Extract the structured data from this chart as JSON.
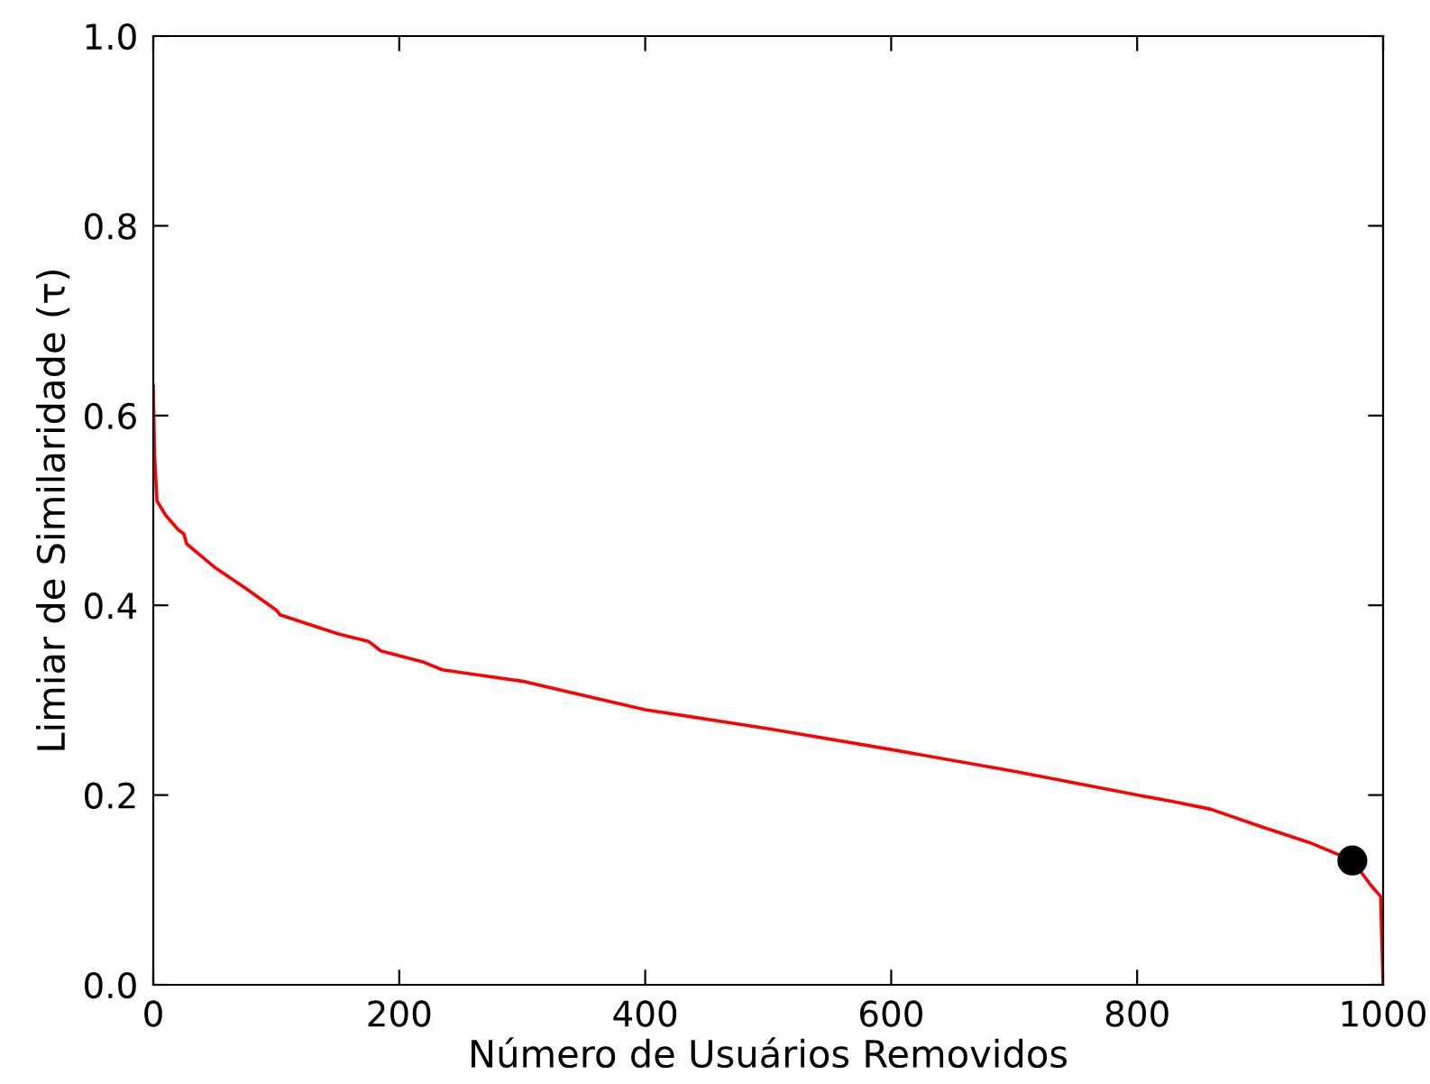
{
  "chart_data": {
    "type": "line",
    "xlabel": "Número de Usuários Removidos",
    "ylabel": "Limiar de Similaridade (τ)",
    "xlim": [
      0,
      1000
    ],
    "ylim": [
      0,
      1.0
    ],
    "xticks": [
      0,
      200,
      400,
      600,
      800,
      1000
    ],
    "yticks": [
      {
        "value": 0,
        "label": "0.0"
      },
      0.2,
      0.4,
      0.6,
      0.8,
      {
        "value": 1,
        "label": "1.0"
      }
    ],
    "grid": false,
    "legend": false,
    "series": [
      {
        "color": "#ff0000",
        "x": [
          0,
          1,
          3,
          10,
          20,
          25,
          27,
          50,
          75,
          100,
          103,
          150,
          175,
          185,
          220,
          235,
          300,
          400,
          500,
          600,
          700,
          800,
          830,
          860,
          900,
          940,
          975,
          990,
          998,
          1000
        ],
        "values": [
          0.632,
          0.56,
          0.51,
          0.495,
          0.48,
          0.475,
          0.465,
          0.44,
          0.418,
          0.395,
          0.39,
          0.37,
          0.362,
          0.352,
          0.34,
          0.332,
          0.32,
          0.29,
          0.27,
          0.248,
          0.225,
          0.2,
          0.193,
          0.185,
          0.167,
          0.15,
          0.131,
          0.105,
          0.093,
          0.0
        ]
      },
      {
        "type": "scatter",
        "color": "#000000",
        "marker": "circle",
        "x": [
          975
        ],
        "values": [
          0.131
        ]
      }
    ]
  }
}
